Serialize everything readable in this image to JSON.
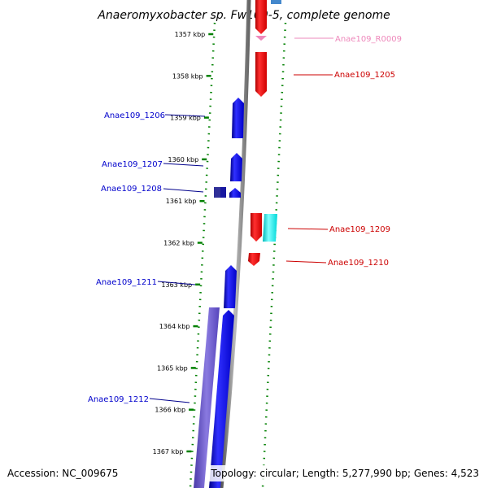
{
  "title": "Anaeromyxobacter sp. Fw109-5, complete genome",
  "footer": {
    "accession": "Accession: NC_009675",
    "topology": "Topology: circular; Length: 5,277,990 bp; Genes: 4,523"
  },
  "colors": {
    "forward_gene": "#0000ff",
    "reverse_gene": "#ff0000",
    "rna_label": "#ee88bb",
    "cyan_feature": "#00ffff",
    "ruler_tick": "#008000",
    "backbone": "#888888",
    "segment": "#6655cc"
  },
  "ruler": [
    {
      "label": "1357 kbp"
    },
    {
      "label": "1358 kbp"
    },
    {
      "label": "1359 kbp"
    },
    {
      "label": "1360 kbp"
    },
    {
      "label": "1361 kbp"
    },
    {
      "label": "1362 kbp"
    },
    {
      "label": "1363 kbp"
    },
    {
      "label": "1364 kbp"
    },
    {
      "label": "1365 kbp"
    },
    {
      "label": "1366 kbp"
    },
    {
      "label": "1367 kbp"
    }
  ],
  "genes_left": [
    {
      "name": "Anae109_1206"
    },
    {
      "name": "Anae109_1207"
    },
    {
      "name": "Anae109_1208"
    },
    {
      "name": "Anae109_1211"
    },
    {
      "name": "Anae109_1212"
    }
  ],
  "genes_right": [
    {
      "name": "Anae109_R0009"
    },
    {
      "name": "Anae109_1205"
    },
    {
      "name": "Anae109_1209"
    },
    {
      "name": "Anae109_1210"
    }
  ]
}
